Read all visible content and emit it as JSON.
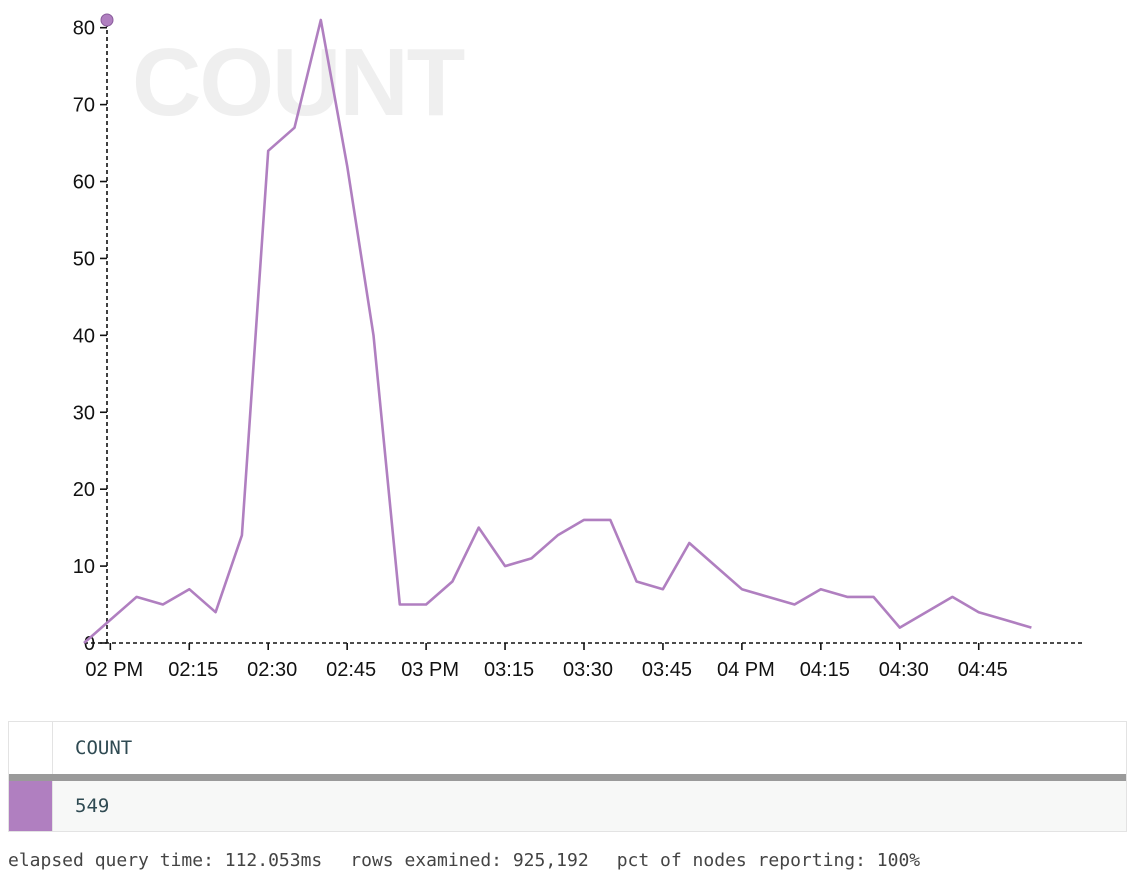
{
  "chart_data": {
    "type": "line",
    "watermark": "COUNT",
    "color": "#b07fc0",
    "x_tick_labels": [
      "02 PM",
      "02:15",
      "02:30",
      "02:45",
      "03 PM",
      "03:15",
      "03:30",
      "03:45",
      "04 PM",
      "04:15",
      "04:30",
      "04:45"
    ],
    "y_tick_labels": [
      "0",
      "10",
      "20",
      "30",
      "40",
      "50",
      "60",
      "70",
      "80"
    ],
    "ylim": [
      0,
      81
    ],
    "xlim_minutes_from_2pm": [
      -5,
      185
    ],
    "series": [
      {
        "x": [
          "01:55 PM",
          "02:00 PM",
          "02:05 PM",
          "02:10 PM",
          "02:15 PM",
          "02:20 PM",
          "02:25 PM",
          "02:30 PM",
          "02:35 PM",
          "02:40 PM",
          "02:45 PM",
          "02:50 PM",
          "02:55 PM",
          "03:00 PM",
          "03:05 PM",
          "03:10 PM",
          "03:15 PM",
          "03:20 PM",
          "03:25 PM",
          "03:30 PM",
          "03:35 PM",
          "03:40 PM",
          "03:45 PM",
          "03:50 PM",
          "03:55 PM",
          "04:00 PM",
          "04:05 PM",
          "04:10 PM",
          "04:15 PM",
          "04:20 PM",
          "04:25 PM",
          "04:30 PM",
          "04:35 PM",
          "04:40 PM",
          "04:45 PM",
          "04:50 PM",
          "04:55 PM"
        ],
        "minutes": [
          -5,
          0,
          5,
          10,
          15,
          20,
          25,
          30,
          35,
          40,
          45,
          50,
          55,
          60,
          65,
          70,
          75,
          80,
          85,
          90,
          95,
          100,
          105,
          110,
          115,
          120,
          125,
          130,
          135,
          140,
          145,
          150,
          155,
          160,
          165,
          170,
          175
        ],
        "values": [
          0,
          3,
          6,
          5,
          7,
          4,
          14,
          64,
          67,
          81,
          62,
          40,
          5,
          5,
          8,
          15,
          10,
          11,
          14,
          16,
          16,
          8,
          7,
          13,
          10,
          7,
          6,
          5,
          7,
          6,
          6,
          2,
          4,
          6,
          4,
          3,
          2
        ]
      }
    ],
    "marker": {
      "x_minutes": 0,
      "value": 81
    }
  },
  "table": {
    "header": "COUNT",
    "value": "549",
    "swatch_color": "#b07fc0"
  },
  "footer": {
    "elapsed": "elapsed query time: 112.053ms",
    "rows": "rows examined: 925,192",
    "pct": "pct of nodes reporting: 100%"
  }
}
